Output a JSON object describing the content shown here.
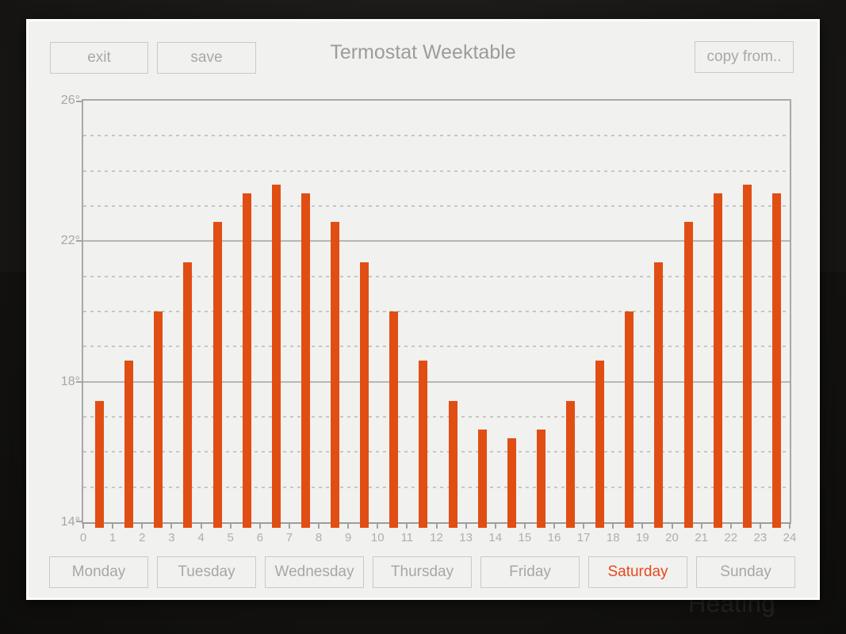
{
  "window": {
    "background_watermark": "Heating"
  },
  "header": {
    "title": "Termostat Weektable",
    "buttons": {
      "exit": "exit",
      "save": "save",
      "copy_from": "copy from.."
    }
  },
  "chart_data": {
    "type": "bar",
    "title": "Termostat Weektable",
    "xlabel": "",
    "ylabel": "",
    "categories": [
      0,
      1,
      2,
      3,
      4,
      5,
      6,
      7,
      8,
      9,
      10,
      11,
      12,
      13,
      14,
      15,
      16,
      17,
      18,
      19,
      20,
      21,
      22,
      23
    ],
    "values": [
      17.45,
      18.6,
      20.0,
      21.4,
      22.55,
      23.35,
      23.6,
      23.35,
      22.55,
      21.4,
      20.0,
      18.6,
      17.45,
      16.65,
      16.4,
      16.65,
      17.45,
      18.6,
      20.0,
      21.4,
      22.55,
      23.35,
      23.6,
      23.35
    ],
    "ylim": [
      14,
      26
    ],
    "grid": "on",
    "legend": "none",
    "y_axis": {
      "labeled_ticks": [
        {
          "value": 26,
          "label": "26°"
        },
        {
          "value": 22,
          "label": "22°"
        },
        {
          "value": 18,
          "label": "18°"
        },
        {
          "value": 14,
          "label": "14°"
        }
      ],
      "solid_gridlines": [
        22,
        18
      ],
      "dashed_gridlines": [
        25,
        24,
        23,
        21,
        20,
        19,
        17,
        16,
        15
      ]
    },
    "x_axis": {
      "tick_labels": [
        "0",
        "1",
        "2",
        "3",
        "4",
        "5",
        "6",
        "7",
        "8",
        "9",
        "10",
        "11",
        "12",
        "13",
        "14",
        "15",
        "16",
        "17",
        "18",
        "19",
        "20",
        "21",
        "22",
        "23",
        "24"
      ],
      "minor_ticks_at_half_hours": true
    },
    "bar_color": "#e14e13"
  },
  "days": {
    "items": [
      {
        "label": "Monday",
        "active": false
      },
      {
        "label": "Tuesday",
        "active": false
      },
      {
        "label": "Wednesday",
        "active": false
      },
      {
        "label": "Thursday",
        "active": false
      },
      {
        "label": "Friday",
        "active": false
      },
      {
        "label": "Saturday",
        "active": true
      },
      {
        "label": "Sunday",
        "active": false
      }
    ]
  },
  "colors": {
    "accent_orange": "#e14e13",
    "active_day_text": "#e8481b",
    "panel_background": "#f1f1ef",
    "muted_text": "#a6a6a6",
    "grid_solid": "#b6b6b6",
    "grid_dashed": "#c6c6c6"
  }
}
